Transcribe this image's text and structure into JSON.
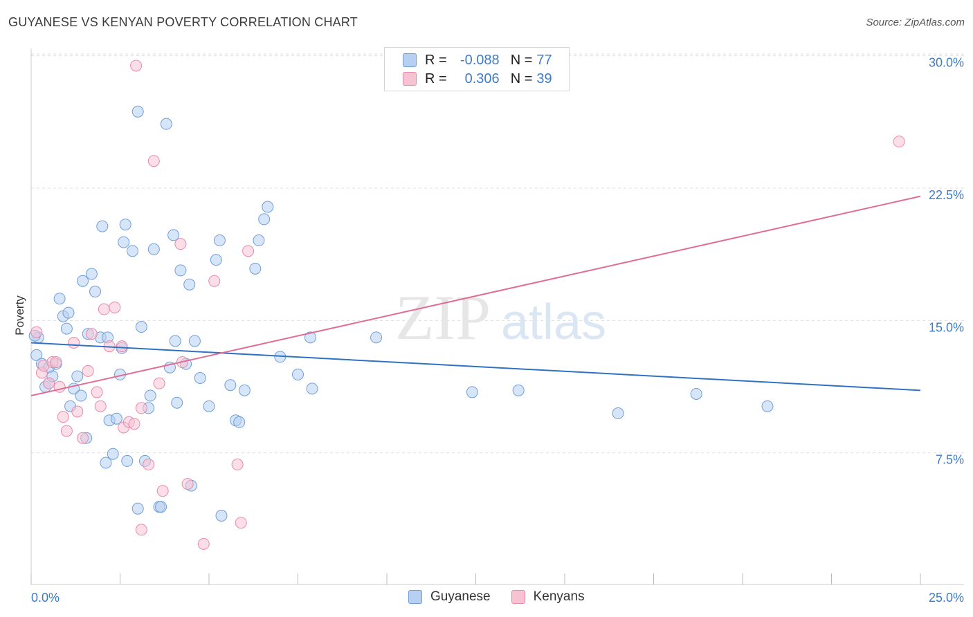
{
  "header": {
    "title": "GUYANESE VS KENYAN POVERTY CORRELATION CHART",
    "source": "Source: ZipAtlas.com"
  },
  "watermark": {
    "zip": "ZIP",
    "atlas": "atlas"
  },
  "legend": {
    "rows": [
      {
        "r_label": "R =",
        "r_value": "-0.088",
        "n_label": "N =",
        "n_value": "77"
      },
      {
        "r_label": "R =",
        "r_value": "0.306",
        "n_label": "N =",
        "n_value": "39"
      }
    ]
  },
  "bottom_legend": {
    "series1": "Guyanese",
    "series2": "Kenyans"
  },
  "colors": {
    "guyanese_fill": "#b7d0f2",
    "guyanese_stroke": "#6f9ed8",
    "guyanese_line": "#2f72c4",
    "kenyans_fill": "#f7c3d3",
    "kenyans_stroke": "#e88aa9",
    "kenyans_line": "#e06d95",
    "tick_text": "#3d7cc9",
    "grid": "#dddddd"
  },
  "chart_data": {
    "type": "scatter",
    "title": "GUYANESE VS KENYAN POVERTY CORRELATION CHART",
    "xlabel": "",
    "ylabel": "Poverty",
    "xlim": [
      0,
      25
    ],
    "ylim": [
      0,
      31
    ],
    "x_tick_labels": [
      {
        "value": 0,
        "label": "0.0%"
      },
      {
        "value": 25,
        "label": "25.0%"
      }
    ],
    "y_tick_labels": [
      {
        "value": 7.5,
        "label": "7.5%"
      },
      {
        "value": 15,
        "label": "15.0%"
      },
      {
        "value": 22.5,
        "label": "22.5%"
      },
      {
        "value": 30,
        "label": "30.0%"
      }
    ],
    "series": [
      {
        "name": "Guyanese",
        "r": -0.088,
        "n": 77,
        "trend": {
          "x": [
            0,
            25
          ],
          "y": [
            13.7,
            11.0
          ]
        },
        "points": [
          [
            0.15,
            13.0
          ],
          [
            0.2,
            14.0
          ],
          [
            0.3,
            12.5
          ],
          [
            0.4,
            11.2
          ],
          [
            0.5,
            11.4
          ],
          [
            0.5,
            12.3
          ],
          [
            0.6,
            11.8
          ],
          [
            0.7,
            12.5
          ],
          [
            0.8,
            16.2
          ],
          [
            0.9,
            15.2
          ],
          [
            1.0,
            14.5
          ],
          [
            1.05,
            15.4
          ],
          [
            1.1,
            10.1
          ],
          [
            1.2,
            11.1
          ],
          [
            1.3,
            11.8
          ],
          [
            1.4,
            10.7
          ],
          [
            1.45,
            17.2
          ],
          [
            1.55,
            8.3
          ],
          [
            1.6,
            14.2
          ],
          [
            1.7,
            17.6
          ],
          [
            1.8,
            16.6
          ],
          [
            1.95,
            14.0
          ],
          [
            2.0,
            20.3
          ],
          [
            2.1,
            6.9
          ],
          [
            2.15,
            14.0
          ],
          [
            2.2,
            9.3
          ],
          [
            2.3,
            7.4
          ],
          [
            2.4,
            9.4
          ],
          [
            2.5,
            11.9
          ],
          [
            2.55,
            13.4
          ],
          [
            2.6,
            19.4
          ],
          [
            2.65,
            20.4
          ],
          [
            2.7,
            7.0
          ],
          [
            2.85,
            18.9
          ],
          [
            3.0,
            26.8
          ],
          [
            3.0,
            4.3
          ],
          [
            3.1,
            14.6
          ],
          [
            3.2,
            7.0
          ],
          [
            3.3,
            10.0
          ],
          [
            3.35,
            10.7
          ],
          [
            3.45,
            19.0
          ],
          [
            3.6,
            4.4
          ],
          [
            3.65,
            4.4
          ],
          [
            3.8,
            26.1
          ],
          [
            3.9,
            12.3
          ],
          [
            4.0,
            19.8
          ],
          [
            4.05,
            13.8
          ],
          [
            4.1,
            10.3
          ],
          [
            4.2,
            17.8
          ],
          [
            4.35,
            12.5
          ],
          [
            4.45,
            17.0
          ],
          [
            4.5,
            5.6
          ],
          [
            4.6,
            13.8
          ],
          [
            4.75,
            11.7
          ],
          [
            5.0,
            10.1
          ],
          [
            5.2,
            18.4
          ],
          [
            5.3,
            19.5
          ],
          [
            5.35,
            3.9
          ],
          [
            5.6,
            11.3
          ],
          [
            5.75,
            9.3
          ],
          [
            5.85,
            9.2
          ],
          [
            6.0,
            11.0
          ],
          [
            6.3,
            17.9
          ],
          [
            6.4,
            19.5
          ],
          [
            6.55,
            20.7
          ],
          [
            6.65,
            21.4
          ],
          [
            7.0,
            12.9
          ],
          [
            7.5,
            11.9
          ],
          [
            7.85,
            14.0
          ],
          [
            7.9,
            11.1
          ],
          [
            9.7,
            14.0
          ],
          [
            12.4,
            10.9
          ],
          [
            13.7,
            11.0
          ],
          [
            16.5,
            9.7
          ],
          [
            18.7,
            10.8
          ],
          [
            20.7,
            10.1
          ],
          [
            0.1,
            14.1
          ]
        ]
      },
      {
        "name": "Kenyans",
        "r": 0.306,
        "n": 39,
        "trend": {
          "x": [
            0,
            25
          ],
          "y": [
            10.7,
            22.0
          ]
        },
        "points": [
          [
            0.15,
            14.3
          ],
          [
            0.3,
            12.0
          ],
          [
            0.35,
            12.4
          ],
          [
            0.5,
            11.4
          ],
          [
            0.6,
            12.6
          ],
          [
            0.7,
            12.6
          ],
          [
            0.8,
            11.2
          ],
          [
            0.9,
            9.5
          ],
          [
            1.0,
            8.7
          ],
          [
            1.2,
            13.7
          ],
          [
            1.3,
            9.8
          ],
          [
            1.45,
            8.3
          ],
          [
            1.6,
            12.1
          ],
          [
            1.7,
            14.2
          ],
          [
            1.85,
            10.9
          ],
          [
            1.95,
            10.1
          ],
          [
            2.05,
            15.6
          ],
          [
            2.2,
            13.5
          ],
          [
            2.35,
            15.7
          ],
          [
            2.55,
            13.5
          ],
          [
            2.6,
            8.9
          ],
          [
            2.75,
            9.2
          ],
          [
            2.9,
            9.1
          ],
          [
            2.95,
            29.4
          ],
          [
            3.1,
            3.1
          ],
          [
            3.1,
            10.0
          ],
          [
            3.3,
            6.8
          ],
          [
            3.45,
            24.0
          ],
          [
            3.6,
            11.4
          ],
          [
            3.7,
            5.3
          ],
          [
            4.2,
            19.3
          ],
          [
            4.25,
            12.6
          ],
          [
            4.4,
            5.7
          ],
          [
            4.85,
            2.3
          ],
          [
            5.15,
            17.2
          ],
          [
            5.8,
            6.8
          ],
          [
            5.9,
            3.5
          ],
          [
            6.1,
            18.9
          ],
          [
            24.4,
            25.1
          ]
        ]
      }
    ]
  }
}
